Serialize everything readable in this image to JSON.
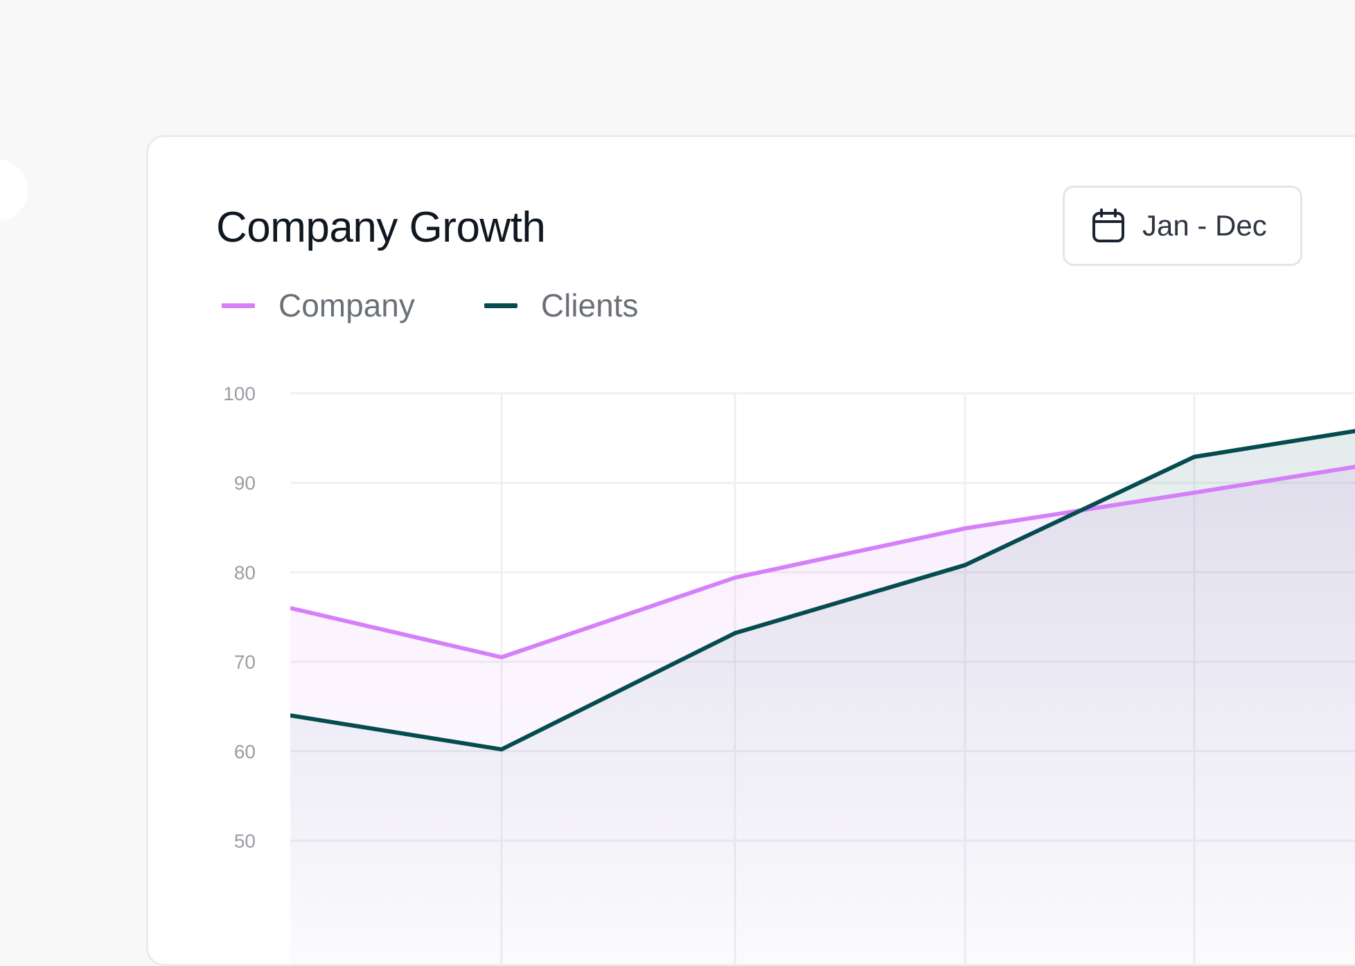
{
  "card": {
    "title": "Company Growth",
    "date_range": {
      "label": "Jan - Dec",
      "icon": "calendar-icon"
    }
  },
  "colors": {
    "company": "#d580f8",
    "clients": "#064b50"
  },
  "chart_data": {
    "type": "area",
    "title": "Company Growth",
    "legend_position": "top-left",
    "grid": true,
    "ylim": [
      50,
      100
    ],
    "y_ticks": [
      "50",
      "60",
      "70",
      "80",
      "90",
      "100"
    ],
    "x": [
      0,
      1,
      2,
      3,
      4,
      5
    ],
    "series": [
      {
        "name": "Company",
        "color": "#d580f8",
        "values": [
          76,
          70.5,
          79.4,
          84.9,
          88.9,
          93
        ]
      },
      {
        "name": "Clients",
        "color": "#064b50",
        "values": [
          64,
          60.2,
          73.2,
          80.8,
          92.9,
          97
        ]
      }
    ]
  }
}
